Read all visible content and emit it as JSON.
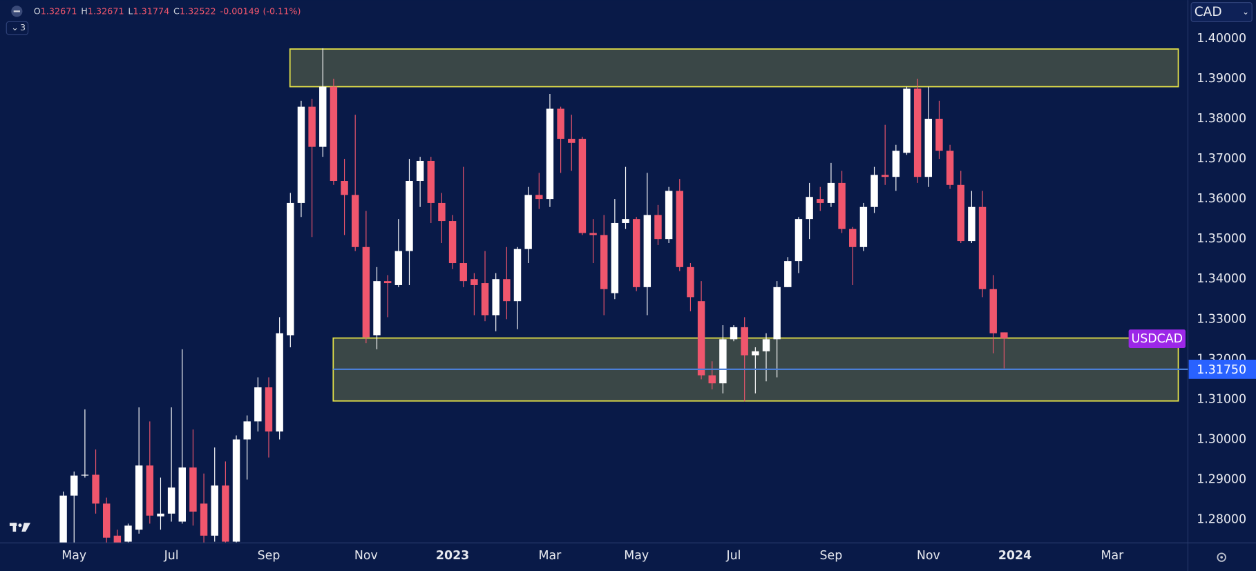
{
  "chart_data": {
    "type": "candlestick",
    "symbol": "USDCAD",
    "currency": "CAD",
    "header": {
      "ohlc": [
        {
          "label": "O",
          "value": 1.32671
        },
        {
          "label": "H",
          "value": 1.32671
        },
        {
          "label": "L",
          "value": 1.31774
        },
        {
          "label": "C",
          "value": 1.32522
        }
      ],
      "change": -0.00149,
      "change_pct": "(-0.11%)",
      "indicators": 3
    },
    "categories": [
      null,
      "May",
      null,
      null,
      null,
      null,
      null,
      null,
      null,
      null,
      "Jul",
      null,
      null,
      null,
      null,
      null,
      null,
      null,
      null,
      "Sep",
      null,
      null,
      null,
      null,
      null,
      null,
      null,
      null,
      "Nov",
      null,
      null,
      null,
      null,
      null,
      null,
      null,
      "2023",
      null,
      null,
      null,
      null,
      null,
      null,
      null,
      null,
      "Mar",
      null,
      null,
      null,
      null,
      null,
      null,
      null,
      "May",
      null,
      null,
      null,
      null,
      null,
      null,
      null,
      null,
      "Jul",
      null,
      null,
      null,
      null,
      null,
      null,
      null,
      null,
      "Sep",
      null,
      null,
      null,
      null,
      null,
      null,
      null,
      null,
      "Nov",
      null,
      null,
      null,
      null,
      null,
      null,
      null,
      "2024",
      null,
      null,
      null,
      null,
      null,
      null,
      null,
      null,
      "Mar",
      null,
      null,
      null,
      null,
      null,
      null,
      null
    ],
    "open": [
      1.2735,
      1.286,
      1.291,
      1.2912,
      1.284,
      1.276,
      1.2745,
      1.2775,
      1.2935,
      1.2808,
      1.2815,
      1.2795,
      1.293,
      1.284,
      1.276,
      1.2885,
      1.2745,
      1.3,
      1.3045,
      1.313,
      1.302,
      1.326,
      1.359,
      1.383,
      1.373,
      1.388,
      1.3645,
      1.361,
      1.348,
      1.326,
      1.3395,
      1.3385,
      1.347,
      1.3645,
      1.3695,
      1.359,
      1.3545,
      1.344,
      1.34,
      1.339,
      1.331,
      1.34,
      1.3345,
      1.3475,
      1.361,
      1.36,
      1.3825,
      1.375,
      1.375,
      1.3515,
      1.351,
      1.3365,
      1.354,
      1.355,
      1.338,
      1.356,
      1.35,
      1.362,
      1.343,
      1.3345,
      1.316,
      1.314,
      1.325,
      1.328,
      1.321,
      1.322,
      1.325,
      1.338,
      1.3445,
      1.355,
      1.36,
      1.359,
      1.364,
      1.3525,
      1.348,
      1.358,
      1.366,
      1.3655,
      1.3715,
      1.3875,
      1.3655,
      1.38,
      1.372,
      1.3635,
      1.3495,
      1.358,
      1.3375,
      1.32671,
      null,
      null,
      null,
      null,
      null,
      null,
      null,
      null,
      null,
      null,
      null,
      null,
      null,
      null,
      null,
      null,
      null
    ],
    "high": [
      1.287,
      1.292,
      1.3075,
      1.2975,
      1.2855,
      1.2775,
      1.279,
      1.308,
      1.3045,
      1.2905,
      1.308,
      1.3225,
      1.3025,
      1.2915,
      1.298,
      1.2945,
      1.301,
      1.306,
      1.3155,
      1.3155,
      1.3305,
      1.3615,
      1.3845,
      1.385,
      1.3976,
      1.39,
      1.37,
      1.381,
      1.357,
      1.343,
      1.341,
      1.355,
      1.37,
      1.3705,
      1.3705,
      1.3615,
      1.356,
      1.368,
      1.3415,
      1.347,
      1.3415,
      1.348,
      1.348,
      1.363,
      1.3665,
      1.3862,
      1.383,
      1.381,
      1.3755,
      1.355,
      1.356,
      1.36,
      1.368,
      1.3555,
      1.3665,
      1.3585,
      1.363,
      1.365,
      1.344,
      1.3395,
      1.3195,
      1.3285,
      1.3285,
      1.3305,
      1.323,
      1.3265,
      1.3395,
      1.3455,
      1.3555,
      1.364,
      1.363,
      1.369,
      1.367,
      1.353,
      1.359,
      1.368,
      1.3785,
      1.3735,
      1.388,
      1.39,
      1.388,
      1.3845,
      1.3735,
      1.367,
      1.362,
      1.362,
      1.341,
      1.32671,
      null,
      null,
      null,
      null,
      null,
      null,
      null,
      null,
      null,
      null,
      null,
      null,
      null,
      null,
      null,
      null,
      null
    ],
    "low": [
      1.27,
      1.274,
      1.2905,
      1.2815,
      1.272,
      1.27,
      1.272,
      1.2765,
      1.279,
      1.2775,
      1.2795,
      1.279,
      1.2785,
      1.2735,
      1.2745,
      1.2725,
      1.2735,
      1.29,
      1.302,
      1.2955,
      1.3,
      1.323,
      1.3555,
      1.3505,
      1.3705,
      1.3635,
      1.351,
      1.347,
      1.324,
      1.3225,
      1.3305,
      1.338,
      1.3385,
      1.358,
      1.354,
      1.349,
      1.3425,
      1.338,
      1.331,
      1.3295,
      1.327,
      1.33,
      1.3275,
      1.344,
      1.3575,
      1.358,
      1.3665,
      1.367,
      1.351,
      1.344,
      1.331,
      1.335,
      1.3525,
      1.337,
      1.331,
      1.3485,
      1.349,
      1.342,
      1.332,
      1.315,
      1.3125,
      1.3115,
      1.3245,
      1.3095,
      1.3115,
      1.3145,
      1.3155,
      1.338,
      1.3415,
      1.35,
      1.357,
      1.358,
      1.3515,
      1.3385,
      1.347,
      1.3565,
      1.3635,
      1.362,
      1.371,
      1.364,
      1.363,
      1.37,
      1.3625,
      1.349,
      1.349,
      1.3355,
      1.3215,
      1.31774,
      null,
      null,
      null,
      null,
      null,
      null,
      null,
      null,
      null,
      null,
      null,
      null,
      null,
      null,
      null,
      null,
      null
    ],
    "close": [
      1.286,
      1.291,
      1.2912,
      1.284,
      1.2755,
      1.2725,
      1.2785,
      1.2935,
      1.281,
      1.2815,
      1.288,
      1.293,
      1.282,
      1.276,
      1.2885,
      1.2745,
      1.3,
      1.3045,
      1.313,
      1.302,
      1.3265,
      1.359,
      1.383,
      1.373,
      1.388,
      1.3645,
      1.361,
      1.348,
      1.3255,
      1.3395,
      1.339,
      1.347,
      1.3645,
      1.3695,
      1.359,
      1.3545,
      1.344,
      1.3395,
      1.3385,
      1.331,
      1.34,
      1.3345,
      1.3475,
      1.361,
      1.36,
      1.3825,
      1.375,
      1.374,
      1.3515,
      1.351,
      1.3375,
      1.354,
      1.355,
      1.338,
      1.356,
      1.35,
      1.362,
      1.343,
      1.3355,
      1.316,
      1.314,
      1.325,
      1.328,
      1.321,
      1.322,
      1.325,
      1.338,
      1.3445,
      1.355,
      1.3605,
      1.359,
      1.364,
      1.3525,
      1.348,
      1.358,
      1.366,
      1.3655,
      1.372,
      1.3875,
      1.3655,
      1.38,
      1.372,
      1.3635,
      1.3495,
      1.358,
      1.3375,
      1.3265,
      1.32522,
      null,
      null,
      null,
      null,
      null,
      null,
      null,
      null,
      null,
      null,
      null,
      null,
      null,
      null,
      null,
      null,
      null
    ],
    "up_color": "#ffffff",
    "down_color": "#f0566d",
    "ylim": [
      1.2742,
      1.4096
    ],
    "yticks": [
      {
        "value": 1.28,
        "label": "1.28000"
      },
      {
        "value": 1.29,
        "label": "1.29000"
      },
      {
        "value": 1.3,
        "label": "1.30000"
      },
      {
        "value": 1.31,
        "label": "1.31000"
      },
      {
        "value": 1.32,
        "label": "1.32000"
      },
      {
        "value": 1.33,
        "label": "1.33000"
      },
      {
        "value": 1.34,
        "label": "1.34000"
      },
      {
        "value": 1.35,
        "label": "1.35000"
      },
      {
        "value": 1.36,
        "label": "1.36000"
      },
      {
        "value": 1.37,
        "label": "1.37000"
      },
      {
        "value": 1.38,
        "label": "1.38000"
      },
      {
        "value": 1.39,
        "label": "1.39000"
      },
      {
        "value": 1.4,
        "label": "1.40000"
      }
    ],
    "zones": [
      {
        "top": 1.3974,
        "bottom": 1.388
      },
      {
        "top": 1.3253,
        "bottom": 1.3096
      }
    ],
    "hline": {
      "value": 1.3175,
      "label": "1.31750",
      "color": "#4a7fd8"
    },
    "grid": false
  }
}
